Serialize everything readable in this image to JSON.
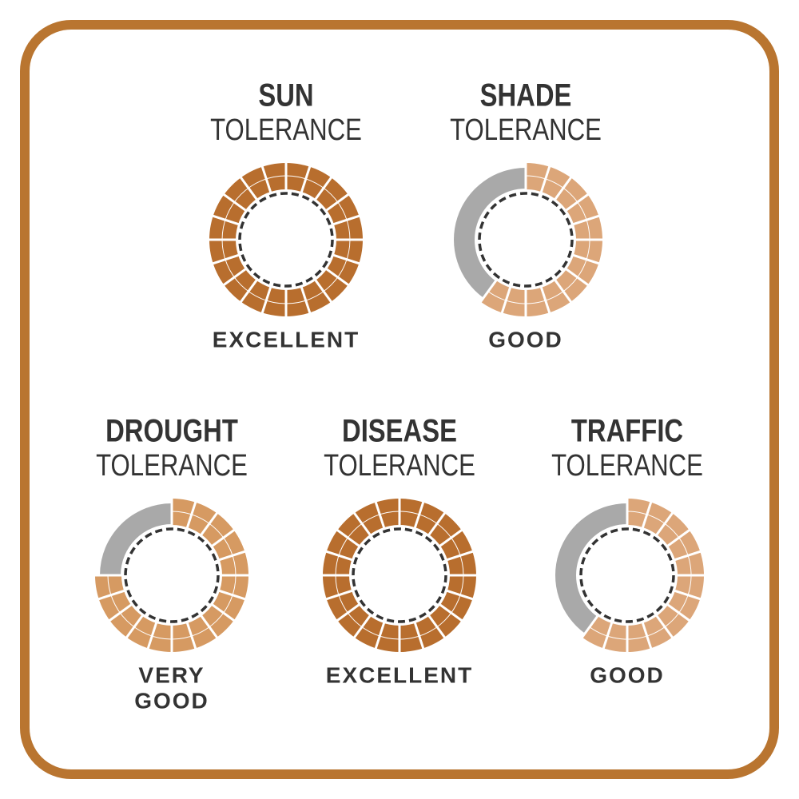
{
  "chart_data": [
    {
      "type": "gauge",
      "title": "SUN",
      "subtitle": "TOLERANCE",
      "value": 20,
      "max": 20,
      "rating": [
        "EXCELLENT"
      ],
      "color": "#b86e2e",
      "track_color": "#a9a9a9"
    },
    {
      "type": "gauge",
      "title": "SHADE",
      "subtitle": "TOLERANCE",
      "value": 12,
      "max": 20,
      "rating": [
        "GOOD"
      ],
      "color": "#dca679",
      "track_color": "#a9a9a9"
    },
    {
      "type": "gauge",
      "title": "DROUGHT",
      "subtitle": "TOLERANCE",
      "value": 15,
      "max": 20,
      "rating": [
        "VERY",
        "GOOD"
      ],
      "color": "#d69a62",
      "track_color": "#a9a9a9"
    },
    {
      "type": "gauge",
      "title": "DISEASE",
      "subtitle": "TOLERANCE",
      "value": 20,
      "max": 20,
      "rating": [
        "EXCELLENT"
      ],
      "color": "#b86e2e",
      "track_color": "#a9a9a9"
    },
    {
      "type": "gauge",
      "title": "TRAFFIC",
      "subtitle": "TOLERANCE",
      "value": 12,
      "max": 20,
      "rating": [
        "GOOD"
      ],
      "color": "#dca679",
      "track_color": "#a9a9a9"
    }
  ]
}
